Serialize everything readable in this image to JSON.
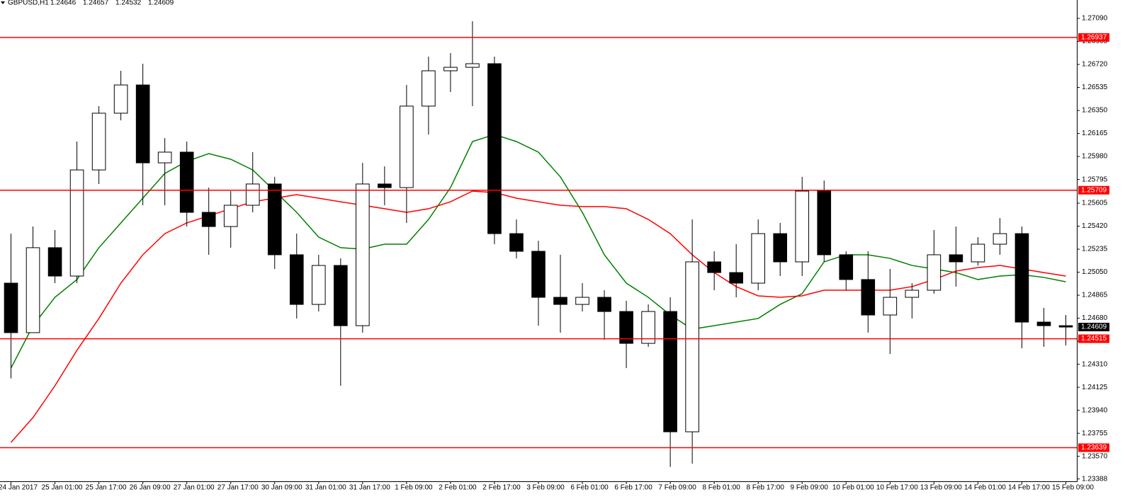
{
  "chart_data": {
    "type": "candlestick",
    "title": "GBPUSD,H1",
    "header_ohlc": [
      1.24646,
      1.24657,
      1.24532,
      1.24609
    ],
    "candle_color": "#000000",
    "categories": [
      "24 Jan 2017",
      null,
      "25 Jan 01:00",
      null,
      "25 Jan 17:00",
      null,
      "26 Jan 09:00",
      null,
      "27 Jan 01:00",
      null,
      "27 Jan 17:00",
      null,
      "30 Jan 09:00",
      null,
      "31 Jan 01:00",
      null,
      "31 Jan 17:00",
      null,
      "1 Feb 09:00",
      null,
      "2 Feb 01:00",
      null,
      "2 Feb 17:00",
      null,
      "3 Feb 09:00",
      null,
      "6 Feb 01:00",
      null,
      "6 Feb 17:00",
      null,
      "7 Feb 09:00",
      null,
      "8 Feb 01:00",
      null,
      "8 Feb 17:00",
      null,
      "9 Feb 09:00",
      null,
      "10 Feb 01:00",
      null,
      "10 Feb 17:00",
      null,
      "13 Feb 09:00",
      null,
      "14 Feb 01:00",
      null,
      "14 Feb 17:00",
      null,
      "15 Feb 09:00"
    ],
    "ohlc": [
      [
        1.24962,
        1.2536,
        1.24196,
        1.24564
      ],
      [
        1.24564,
        1.25417,
        1.24564,
        1.25247
      ],
      [
        1.25247,
        1.25389,
        1.24962,
        1.25019
      ],
      [
        1.25019,
        1.261,
        1.24962,
        1.25872
      ],
      [
        1.25872,
        1.26385,
        1.25759,
        1.26328
      ],
      [
        1.26328,
        1.26669,
        1.26271,
        1.26555
      ],
      [
        1.26555,
        1.26726,
        1.25588,
        1.25929
      ],
      [
        1.25929,
        1.26128,
        1.25588,
        1.26015
      ],
      [
        1.26015,
        1.261,
        1.25417,
        1.25531
      ],
      [
        1.25531,
        1.2573,
        1.2519,
        1.25417
      ],
      [
        1.25417,
        1.25702,
        1.25247,
        1.25588
      ],
      [
        1.25588,
        1.26015,
        1.25531,
        1.25759
      ],
      [
        1.25759,
        1.25816,
        1.25076,
        1.2519
      ],
      [
        1.2519,
        1.2536,
        1.24678,
        1.24791
      ],
      [
        1.24791,
        1.2519,
        1.24734,
        1.25104
      ],
      [
        1.25104,
        1.25161,
        1.24137,
        1.2462
      ],
      [
        1.2462,
        1.25929,
        1.24564,
        1.25759
      ],
      [
        1.25759,
        1.25901,
        1.25588,
        1.2573
      ],
      [
        1.2573,
        1.26555,
        1.25446,
        1.26385
      ],
      [
        1.26385,
        1.26783,
        1.26157,
        1.26669
      ],
      [
        1.26669,
        1.26811,
        1.26498,
        1.26697
      ],
      [
        1.26697,
        1.27067,
        1.26385,
        1.26726
      ],
      [
        1.26726,
        1.26783,
        1.25275,
        1.2536
      ],
      [
        1.2536,
        1.25474,
        1.25161,
        1.25218
      ],
      [
        1.25218,
        1.25303,
        1.2462,
        1.24848
      ],
      [
        1.24848,
        1.2519,
        1.24564,
        1.24791
      ],
      [
        1.24791,
        1.24962,
        1.24734,
        1.24848
      ],
      [
        1.24848,
        1.24905,
        1.24507,
        1.24734
      ],
      [
        1.24734,
        1.2482,
        1.24279,
        1.24478
      ],
      [
        1.24478,
        1.24791,
        1.2445,
        1.24734
      ],
      [
        1.24734,
        1.24848,
        1.23484,
        1.23767
      ],
      [
        1.23767,
        1.25474,
        1.23511,
        1.25133
      ],
      [
        1.25133,
        1.25218,
        1.24905,
        1.25047
      ],
      [
        1.25047,
        1.25275,
        1.24848,
        1.24962
      ],
      [
        1.24962,
        1.25474,
        1.24905,
        1.2536
      ],
      [
        1.2536,
        1.25446,
        1.25019,
        1.25133
      ],
      [
        1.25133,
        1.25816,
        1.25019,
        1.25702
      ],
      [
        1.25702,
        1.25787,
        1.25133,
        1.2519
      ],
      [
        1.2519,
        1.25218,
        1.24905,
        1.24991
      ],
      [
        1.24991,
        1.25218,
        1.24564,
        1.24706
      ],
      [
        1.24706,
        1.25076,
        1.24393,
        1.24848
      ],
      [
        1.24848,
        1.24962,
        1.24678,
        1.24905
      ],
      [
        1.24905,
        1.25389,
        1.24877,
        1.2519
      ],
      [
        1.2519,
        1.25417,
        1.24934,
        1.25133
      ],
      [
        1.25133,
        1.25332,
        1.25104,
        1.25275
      ],
      [
        1.25275,
        1.25485,
        1.2519,
        1.2536
      ],
      [
        1.2536,
        1.25417,
        1.24439,
        1.24649
      ],
      [
        1.24649,
        1.24763,
        1.2445,
        1.2462
      ],
      [
        1.2462,
        1.24706,
        1.24461,
        1.24609
      ]
    ],
    "series": [
      {
        "color": "#008000",
        "values": [
          1.24279,
          1.2462,
          1.24848,
          1.24991,
          1.25247,
          1.25446,
          1.25645,
          1.25844,
          1.25941,
          1.26003,
          1.25958,
          1.25872,
          1.25702,
          1.25531,
          1.25332,
          1.25247,
          1.25235,
          1.25275,
          1.25275,
          1.25474,
          1.2573,
          1.261,
          1.26157,
          1.261,
          1.26015,
          1.25816,
          1.25531,
          1.2519,
          1.24962,
          1.24848,
          1.24706,
          1.24592,
          1.2462,
          1.24649,
          1.24678,
          1.24791,
          1.24877,
          1.25133,
          1.2519,
          1.2519,
          1.25161,
          1.25104,
          1.25076,
          1.25047,
          1.24991,
          1.25019,
          1.2503,
          1.25008,
          1.24973
        ]
      },
      {
        "color": "#ff0000",
        "values": [
          1.23682,
          1.23881,
          1.24137,
          1.24422,
          1.24678,
          1.24962,
          1.2519,
          1.2536,
          1.25446,
          1.25503,
          1.2556,
          1.25616,
          1.25645,
          1.25673,
          1.25645,
          1.25616,
          1.25588,
          1.2556,
          1.25531,
          1.2556,
          1.25616,
          1.25702,
          1.2569,
          1.25645,
          1.25616,
          1.25588,
          1.25577,
          1.25577,
          1.2556,
          1.25474,
          1.2536,
          1.2519,
          1.25047,
          1.24934,
          1.2486,
          1.24848,
          1.2486,
          1.24905,
          1.24905,
          1.24905,
          1.24905,
          1.24934,
          1.24991,
          1.25059,
          1.25087,
          1.25104,
          1.25076,
          1.25047,
          1.25019
        ]
      }
    ],
    "levels": [
      {
        "value": 1.26937,
        "color": "#ff0000"
      },
      {
        "value": 1.25709,
        "color": "#ff0000"
      },
      {
        "value": 1.24515,
        "color": "#ff0000"
      },
      {
        "value": 1.23639,
        "color": "#ff0000"
      }
    ],
    "ylim": [
      1.23369,
      1.27238
    ],
    "yticks": [
      {
        "value": 1.2709,
        "label": "1.27090"
      },
      {
        "value": 1.26905,
        "label": "1.26905"
      },
      {
        "value": 1.2672,
        "label": "1.26720"
      },
      {
        "value": 1.26535,
        "label": "1.26535"
      },
      {
        "value": 1.2635,
        "label": "1.26350"
      },
      {
        "value": 1.26165,
        "label": "1.26165"
      },
      {
        "value": 1.2598,
        "label": "1.25980"
      },
      {
        "value": 1.25795,
        "label": "1.25795"
      },
      {
        "value": 1.25605,
        "label": "1.25605"
      },
      {
        "value": 1.2542,
        "label": "1.25420"
      },
      {
        "value": 1.25235,
        "label": "1.25235"
      },
      {
        "value": 1.2505,
        "label": "1.25050"
      },
      {
        "value": 1.24865,
        "label": "1.24865"
      },
      {
        "value": 1.2468,
        "label": "1.24680"
      },
      {
        "value": 1.24495,
        "label": "1.24495"
      },
      {
        "value": 1.2431,
        "label": "1.24310"
      },
      {
        "value": 1.24125,
        "label": "1.24125"
      },
      {
        "value": 1.2394,
        "label": "1.23940"
      },
      {
        "value": 1.23755,
        "label": "1.23755"
      },
      {
        "value": 1.2357,
        "label": "1.23570"
      },
      {
        "value": 1.23388,
        "label": "1.23388"
      }
    ],
    "grid": false
  }
}
